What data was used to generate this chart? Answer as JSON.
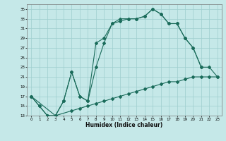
{
  "xlabel": "Humidex (Indice chaleur)",
  "bg_color": "#c5e8e8",
  "grid_color": "#9ecece",
  "line_color": "#1a6b5a",
  "xlim": [
    -0.5,
    23.5
  ],
  "ylim": [
    13,
    36
  ],
  "yticks": [
    13,
    15,
    17,
    19,
    21,
    23,
    25,
    27,
    29,
    31,
    33,
    35
  ],
  "xticks": [
    0,
    1,
    2,
    3,
    4,
    5,
    6,
    7,
    8,
    9,
    10,
    11,
    12,
    13,
    14,
    15,
    16,
    17,
    18,
    19,
    20,
    21,
    22,
    23
  ],
  "line1_x": [
    0,
    1,
    2,
    3,
    4,
    5,
    6,
    7,
    8,
    9,
    10,
    11,
    12,
    13,
    14,
    15,
    16,
    17,
    18,
    19,
    20,
    21
  ],
  "line1_y": [
    17,
    15,
    13,
    13,
    16,
    22,
    17,
    16,
    28,
    29,
    32,
    33,
    33,
    33,
    33.5,
    35,
    34,
    32,
    32,
    29,
    27,
    23
  ],
  "line2_x": [
    0,
    1,
    2,
    3,
    4,
    5,
    6,
    7,
    8,
    9,
    10,
    11,
    12,
    13,
    14,
    15,
    16,
    17,
    18,
    19,
    20,
    21,
    22,
    23
  ],
  "line2_y": [
    17,
    15,
    13,
    13,
    16,
    22,
    17,
    16,
    23,
    28,
    32,
    32.5,
    33,
    33,
    33.5,
    35,
    34,
    32,
    32,
    29,
    27,
    23,
    23,
    21
  ],
  "line3_x": [
    0,
    3,
    5,
    6,
    7,
    8,
    9,
    10,
    11,
    12,
    13,
    14,
    15,
    16,
    17,
    18,
    19,
    20,
    21,
    22,
    23
  ],
  "line3_y": [
    17,
    13,
    14,
    14.5,
    15,
    15.5,
    16,
    16.5,
    17,
    17.5,
    18,
    18.5,
    19,
    19.5,
    20,
    20,
    20.5,
    21,
    21,
    21,
    21
  ]
}
